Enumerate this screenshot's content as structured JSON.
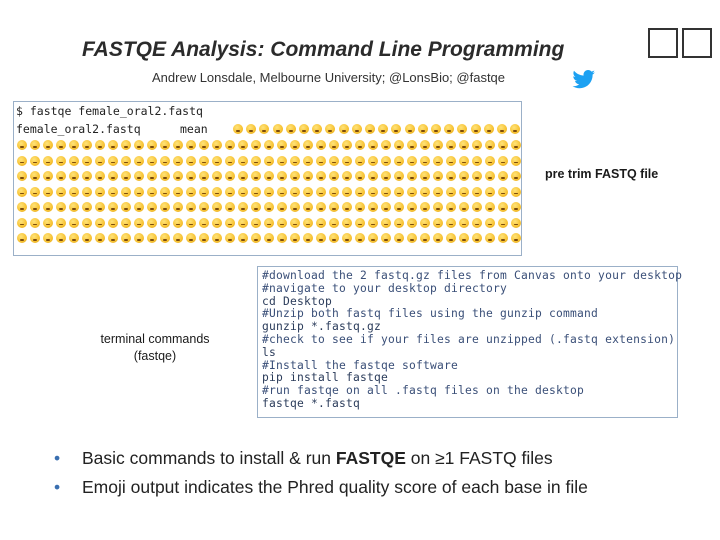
{
  "slide": {
    "title": "FASTQE Analysis: Command Line Programming",
    "subtitle": "Andrew Lonsdale, Melbourne University; @LonsBio; @fastqe"
  },
  "emoji_output": {
    "command": "$ fastqe female_oral2.fastq",
    "filename": "female_oral2.fastq",
    "summary_label": "mean",
    "label": "pre trim FASTQ file"
  },
  "terminal": {
    "label_line1": "terminal commands",
    "label_line2": "(fastqe)",
    "lines": [
      "#download the 2 fastq.gz files from Canvas onto your desktop",
      "#navigate to your desktop directory",
      "cd Desktop",
      "#Unzip both fastq files using the gunzip command",
      "gunzip *.fastq.gz",
      "#check to see if your files are unzipped (.fastq extension)",
      "ls",
      "#Install the fastqe software",
      "pip install fastqe",
      "#run fastqe on all .fastq files on the desktop",
      "fastqe *.fastq"
    ]
  },
  "bullets": {
    "b1_pre": "Basic commands to install & run ",
    "b1_bold": "FASTQE",
    "b1_post": " on ≥1 FASTQ files",
    "b2": "Emoji output indicates the Phred quality score of each base in file",
    "marker": "•"
  },
  "colors": {
    "twitter": "#1da1f2",
    "panel_border": "#9bb0c8"
  }
}
